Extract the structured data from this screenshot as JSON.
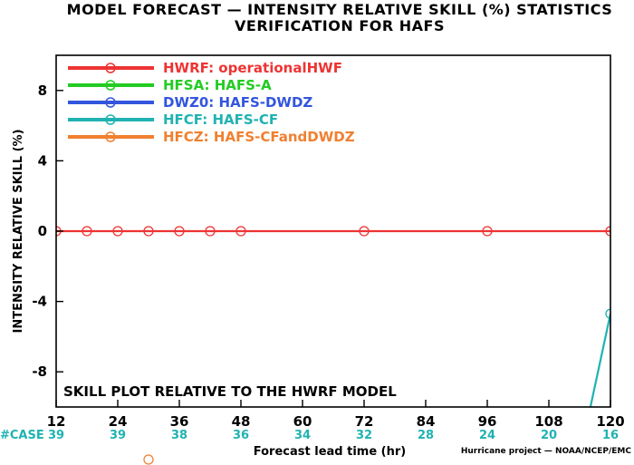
{
  "title_line1": "MODEL FORECAST — INTENSITY RELATIVE SKILL (%) STATISTICS",
  "title_line2": "VERIFICATION FOR HAFS",
  "annotation": "SKILL PLOT RELATIVE TO THE HWRF MODEL",
  "case_label": "#CASE",
  "credit": "Hurricane project — NOAA/NCEP/EMC",
  "chart_data": {
    "type": "line",
    "xlabel": "Forecast lead time (hr)",
    "ylabel": "INTENSITY RELATIVE SKILL (%)",
    "xlim": [
      12,
      120
    ],
    "ylim": [
      -10,
      10
    ],
    "x_ticks": [
      12,
      24,
      36,
      48,
      60,
      72,
      84,
      96,
      108,
      120
    ],
    "y_ticks": [
      -8,
      -4,
      0,
      4,
      8
    ],
    "grid": false,
    "legend_position": "top-left",
    "case_counts": [
      {
        "x": 12,
        "n": "39"
      },
      {
        "x": 24,
        "n": "39"
      },
      {
        "x": 36,
        "n": "38"
      },
      {
        "x": 48,
        "n": "36"
      },
      {
        "x": 60,
        "n": "34"
      },
      {
        "x": 72,
        "n": "32"
      },
      {
        "x": 84,
        "n": "28"
      },
      {
        "x": 96,
        "n": "24"
      },
      {
        "x": 108,
        "n": "20"
      },
      {
        "x": 120,
        "n": "16"
      }
    ],
    "series": [
      {
        "name": "HWRF: operationalHWF",
        "color": "#ee3333",
        "x": [
          12,
          18,
          24,
          30,
          36,
          42,
          48,
          72,
          96,
          120
        ],
        "y": [
          0,
          0,
          0,
          0,
          0,
          0,
          0,
          0,
          0,
          0
        ]
      },
      {
        "name": "HFSA: HAFS-A",
        "color": "#22cc22",
        "x": [],
        "y": []
      },
      {
        "name": "DWZ0: HAFS-DWDZ",
        "color": "#3355dd",
        "x": [],
        "y": []
      },
      {
        "name": "HFCF: HAFS-CF",
        "color": "#20b2b2",
        "x": [
          116.1,
          120
        ],
        "y": [
          -10,
          -4.7
        ]
      },
      {
        "name": "HFCZ: HAFS-CFandDWDZ",
        "color": "#f08030",
        "x": [],
        "y": []
      }
    ]
  }
}
